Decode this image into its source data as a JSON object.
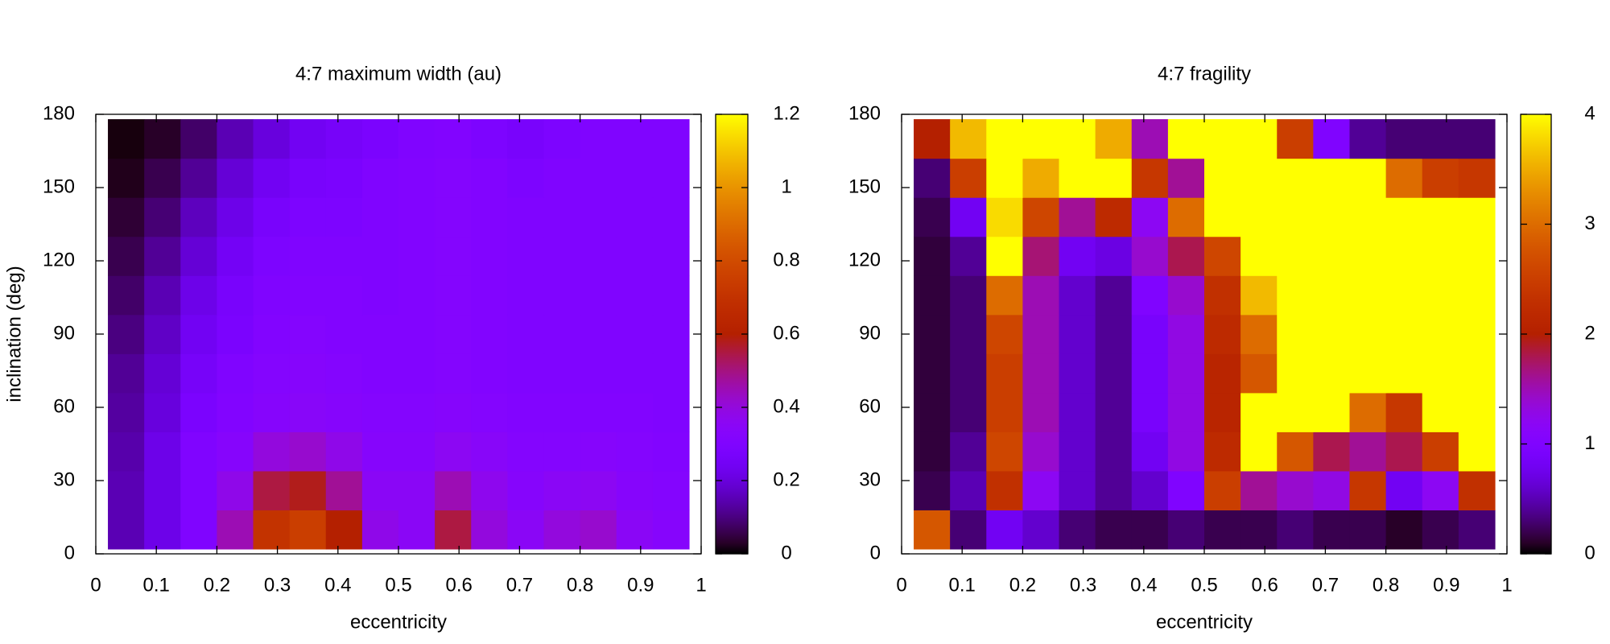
{
  "chart_data": [
    {
      "type": "heatmap",
      "title": "4:7 maximum width (au)",
      "x_label": "eccentricity",
      "y_label": "inclination (deg)",
      "colormap": "gnuplot",
      "xlim": [
        0,
        1
      ],
      "ylim": [
        0,
        180
      ],
      "zlim": [
        0,
        1.2
      ],
      "xticks": [
        0,
        0.1,
        0.2,
        0.3,
        0.4,
        0.5,
        0.6,
        0.7,
        0.8,
        0.9,
        1
      ],
      "yticks": [
        0,
        30,
        60,
        90,
        120,
        150,
        180
      ],
      "zticks": [
        0,
        0.2,
        0.4,
        0.6,
        0.8,
        1,
        1.2
      ],
      "x": [
        0.05,
        0.11,
        0.17,
        0.23,
        0.29,
        0.35,
        0.41,
        0.47,
        0.53,
        0.59,
        0.65,
        0.71,
        0.77,
        0.83,
        0.89,
        0.95
      ],
      "y": [
        10,
        26,
        42,
        58,
        74,
        90,
        106,
        122,
        138,
        154,
        170
      ],
      "z": [
        [
          0.15,
          0.22,
          0.3,
          0.45,
          0.7,
          0.75,
          0.6,
          0.38,
          0.35,
          0.55,
          0.4,
          0.35,
          0.4,
          0.42,
          0.35,
          0.33
        ],
        [
          0.15,
          0.22,
          0.3,
          0.38,
          0.55,
          0.58,
          0.48,
          0.35,
          0.35,
          0.45,
          0.37,
          0.33,
          0.35,
          0.36,
          0.33,
          0.32
        ],
        [
          0.14,
          0.22,
          0.3,
          0.33,
          0.4,
          0.42,
          0.38,
          0.33,
          0.33,
          0.36,
          0.34,
          0.32,
          0.32,
          0.33,
          0.32,
          0.31
        ],
        [
          0.13,
          0.2,
          0.28,
          0.31,
          0.33,
          0.34,
          0.33,
          0.32,
          0.32,
          0.33,
          0.32,
          0.31,
          0.31,
          0.31,
          0.31,
          0.3
        ],
        [
          0.12,
          0.19,
          0.26,
          0.3,
          0.32,
          0.33,
          0.32,
          0.31,
          0.31,
          0.32,
          0.31,
          0.3,
          0.3,
          0.3,
          0.3,
          0.3
        ],
        [
          0.1,
          0.17,
          0.24,
          0.28,
          0.31,
          0.32,
          0.31,
          0.31,
          0.31,
          0.32,
          0.31,
          0.3,
          0.3,
          0.3,
          0.3,
          0.3
        ],
        [
          0.08,
          0.15,
          0.22,
          0.27,
          0.3,
          0.31,
          0.31,
          0.3,
          0.31,
          0.32,
          0.31,
          0.3,
          0.3,
          0.3,
          0.3,
          0.3
        ],
        [
          0.06,
          0.12,
          0.19,
          0.25,
          0.29,
          0.3,
          0.3,
          0.3,
          0.31,
          0.32,
          0.31,
          0.3,
          0.3,
          0.3,
          0.3,
          0.3
        ],
        [
          0.04,
          0.09,
          0.16,
          0.22,
          0.27,
          0.29,
          0.29,
          0.3,
          0.31,
          0.32,
          0.31,
          0.3,
          0.3,
          0.3,
          0.3,
          0.3
        ],
        [
          0.02,
          0.06,
          0.12,
          0.19,
          0.24,
          0.27,
          0.28,
          0.3,
          0.31,
          0.32,
          0.31,
          0.29,
          0.3,
          0.3,
          0.3,
          0.3
        ],
        [
          0.01,
          0.03,
          0.08,
          0.15,
          0.2,
          0.24,
          0.26,
          0.28,
          0.3,
          0.31,
          0.29,
          0.27,
          0.29,
          0.3,
          0.3,
          0.3
        ]
      ]
    },
    {
      "type": "heatmap",
      "title": "4:7 fragility",
      "x_label": "eccentricity",
      "colormap": "gnuplot",
      "xlim": [
        0,
        1
      ],
      "ylim": [
        0,
        180
      ],
      "zlim": [
        0,
        4
      ],
      "xticks": [
        0,
        0.1,
        0.2,
        0.3,
        0.4,
        0.5,
        0.6,
        0.7,
        0.8,
        0.9,
        1
      ],
      "yticks": [
        0,
        30,
        60,
        90,
        120,
        150,
        180
      ],
      "zticks": [
        0,
        1,
        2,
        3,
        4
      ],
      "x": [
        0.05,
        0.11,
        0.17,
        0.23,
        0.29,
        0.35,
        0.41,
        0.47,
        0.53,
        0.59,
        0.65,
        0.71,
        0.77,
        0.83,
        0.89,
        0.95
      ],
      "y": [
        10,
        26,
        42,
        58,
        74,
        90,
        106,
        122,
        138,
        154,
        170
      ],
      "z": [
        [
          2.8,
          0.3,
          0.8,
          0.6,
          0.3,
          0.2,
          0.2,
          0.3,
          0.2,
          0.2,
          0.3,
          0.2,
          0.2,
          0.1,
          0.2,
          0.3
        ],
        [
          0.2,
          0.5,
          2.3,
          1.2,
          0.6,
          0.4,
          0.6,
          1.0,
          2.5,
          1.6,
          1.4,
          1.3,
          2.4,
          0.8,
          1.2,
          2.3
        ],
        [
          0.15,
          0.4,
          2.6,
          1.4,
          0.6,
          0.4,
          0.8,
          1.3,
          2.2,
          4,
          2.8,
          1.8,
          1.6,
          1.8,
          2.5,
          4
        ],
        [
          0.15,
          0.3,
          2.5,
          1.5,
          0.6,
          0.4,
          0.9,
          1.3,
          2.1,
          4,
          4,
          4,
          3,
          2.4,
          4,
          4
        ],
        [
          0.15,
          0.3,
          2.5,
          1.5,
          0.6,
          0.4,
          0.9,
          1.3,
          2.1,
          2.8,
          4,
          4,
          4,
          4,
          4,
          4
        ],
        [
          0.15,
          0.3,
          2.6,
          1.5,
          0.6,
          0.4,
          0.9,
          1.3,
          2.2,
          3.0,
          4,
          4,
          4,
          4,
          4,
          4
        ],
        [
          0.15,
          0.3,
          3.0,
          1.5,
          0.6,
          0.4,
          1.0,
          1.4,
          2.3,
          3.6,
          4,
          4,
          4,
          4,
          4,
          4
        ],
        [
          0.15,
          0.4,
          4,
          1.7,
          0.8,
          0.7,
          1.4,
          1.8,
          2.6,
          4,
          4,
          4,
          4,
          4,
          4,
          4
        ],
        [
          0.2,
          0.8,
          3.8,
          2.6,
          1.6,
          2.2,
          1.2,
          3.0,
          4,
          4,
          4,
          4,
          4,
          4,
          4,
          4
        ],
        [
          0.3,
          2.5,
          4,
          3.5,
          4,
          4,
          2.4,
          1.6,
          4,
          4,
          4,
          4,
          4,
          3,
          2.5,
          2.4
        ],
        [
          2.0,
          3.6,
          4,
          4,
          4,
          3.5,
          1.5,
          4,
          4,
          4,
          2.5,
          1.0,
          0.4,
          0.3,
          0.3,
          0.3
        ]
      ]
    }
  ]
}
